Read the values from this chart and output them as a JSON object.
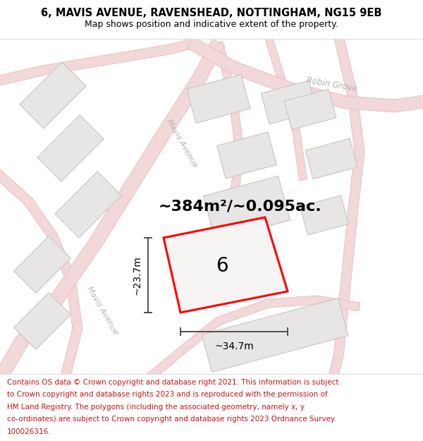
{
  "title_line1": "6, MAVIS AVENUE, RAVENSHEAD, NOTTINGHAM, NG15 9EB",
  "title_line2": "Map shows position and indicative extent of the property.",
  "area_label": "~384m²/~0.095ac.",
  "property_number": "6",
  "dim_width": "~34.7m",
  "dim_height": "~23.7m",
  "footer_text": "Contains OS data © Crown copyright and database right 2021. This information is subject to Crown copyright and database rights 2023 and is reproduced with the permission of HM Land Registry. The polygons (including the associated geometry, namely x, y co-ordinates) are subject to Crown copyright and database rights 2023 Ordnance Survey 100026316.",
  "bg_color": "#ffffff",
  "map_bg": "#f7f4f4",
  "road_color": "#f2d8d8",
  "road_border": "#e8bcbc",
  "plot_fill": "#e8e5e5",
  "plot_border": "#c8c4c4",
  "property_fill": "#f7f4f4",
  "property_outline": "#ff0000",
  "dim_line_color": "#505050",
  "street_label_color": "#b8b0b0",
  "title_fontsize": 10.5,
  "subtitle_fontsize": 9,
  "area_fontsize": 16,
  "dim_fontsize": 10,
  "footer_fontsize": 7.5
}
